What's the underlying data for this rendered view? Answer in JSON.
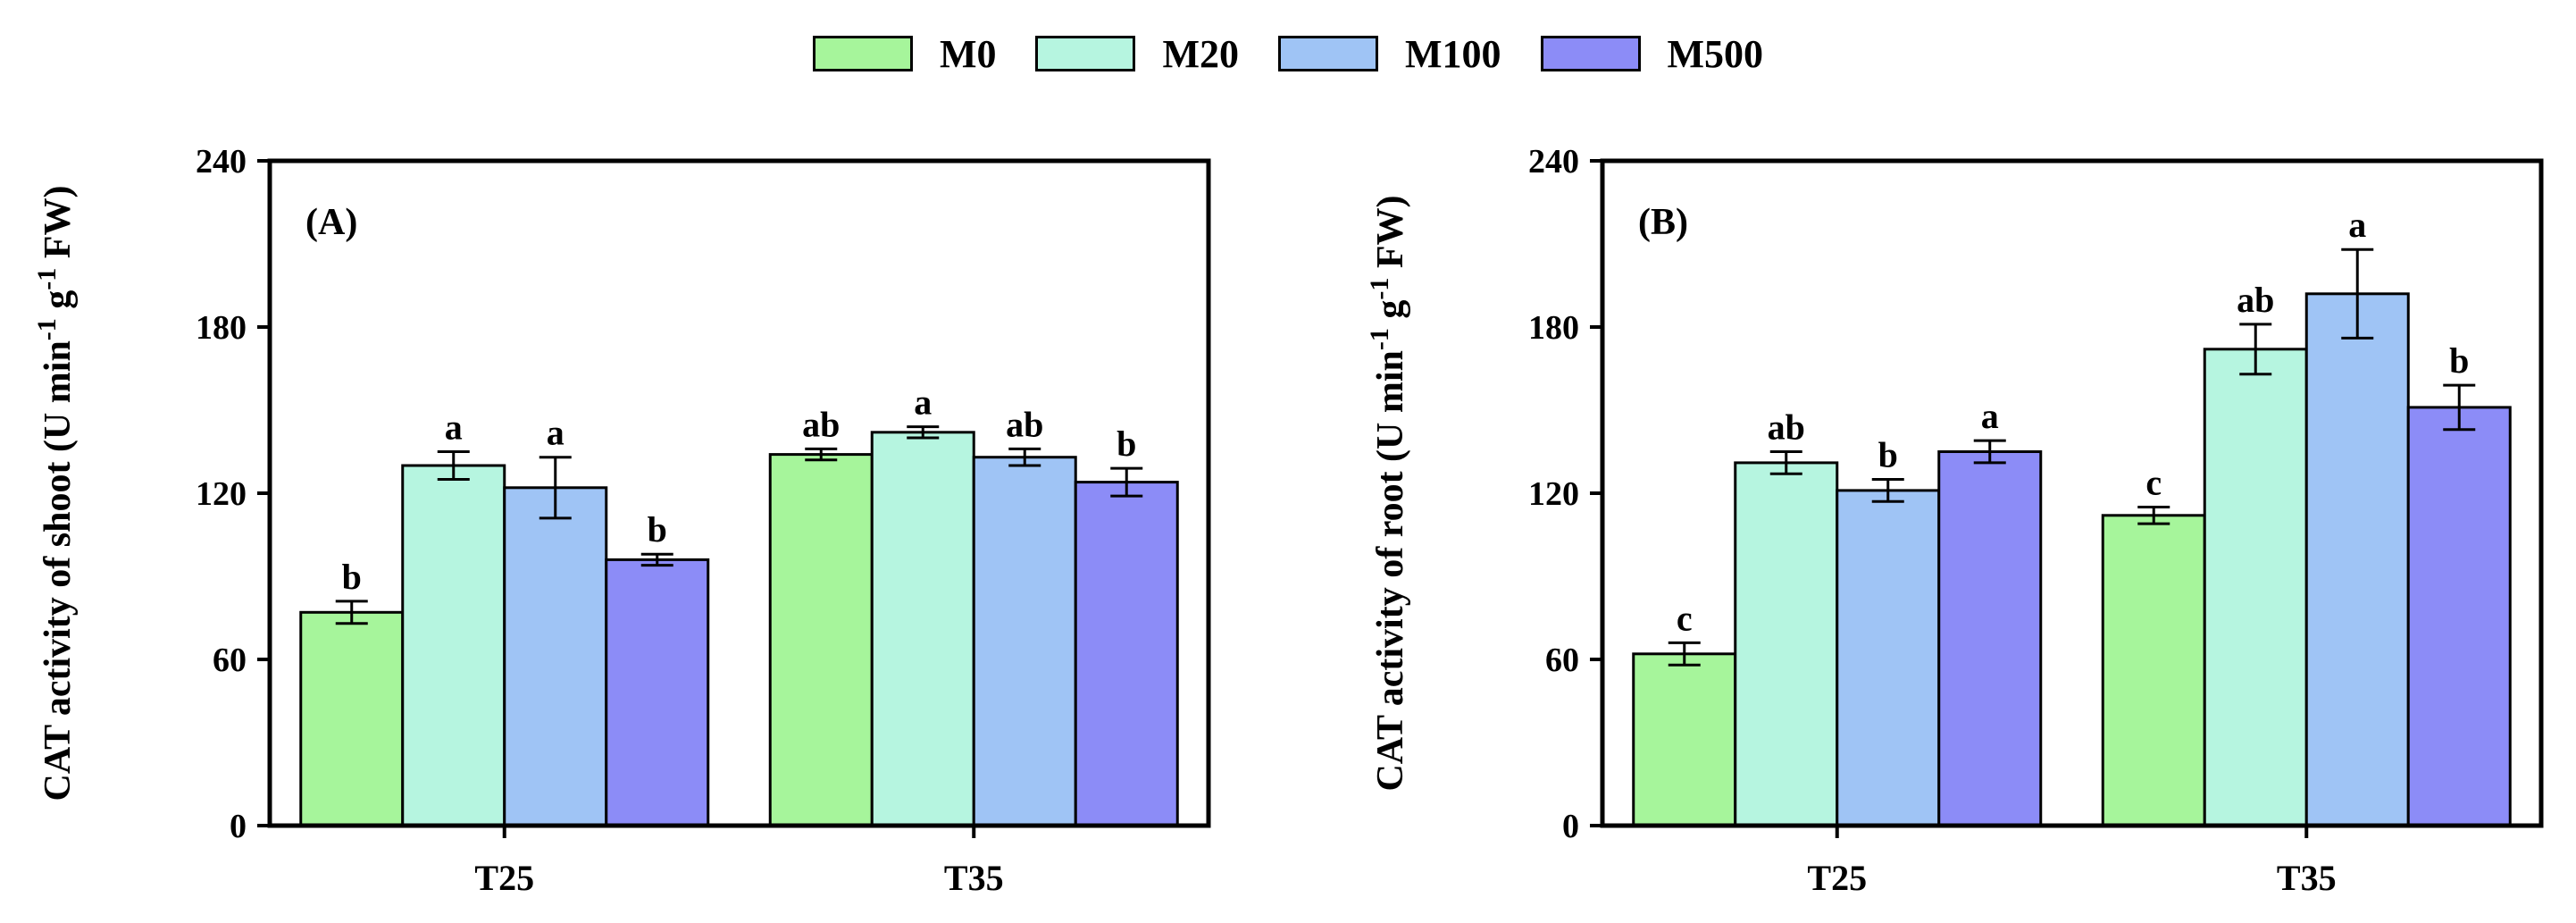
{
  "legend": [
    {
      "name": "M0",
      "color": "#a6f59b"
    },
    {
      "name": "M20",
      "color": "#b6f5e0"
    },
    {
      "name": "M100",
      "color": "#9fc4f5"
    },
    {
      "name": "M500",
      "color": "#8c8cf7"
    }
  ],
  "chart_data": [
    {
      "type": "bar",
      "panel_label": "(A)",
      "ylabel": "CAT activity of shoot (U min-1 g-1 FW)",
      "ylabel_parts": [
        "CAT activity of shoot (U min",
        "-1",
        " g",
        "-1",
        " FW)"
      ],
      "xlabel": "",
      "categories": [
        "T25",
        "T35"
      ],
      "ylim": [
        0,
        240
      ],
      "yticks": [
        0,
        60,
        120,
        180,
        240
      ],
      "grid": false,
      "legend_position": "top-center",
      "series": [
        {
          "name": "M0",
          "values": [
            77,
            134
          ],
          "errors": [
            4,
            2
          ],
          "letters": [
            "b",
            "ab"
          ]
        },
        {
          "name": "M20",
          "values": [
            130,
            142
          ],
          "errors": [
            5,
            2
          ],
          "letters": [
            "a",
            "a"
          ]
        },
        {
          "name": "M100",
          "values": [
            122,
            133
          ],
          "errors": [
            11,
            3
          ],
          "letters": [
            "a",
            "ab"
          ]
        },
        {
          "name": "M500",
          "values": [
            96,
            124
          ],
          "errors": [
            2,
            5
          ],
          "letters": [
            "b",
            "b"
          ]
        }
      ]
    },
    {
      "type": "bar",
      "panel_label": "(B)",
      "ylabel": "CAT activity of root (U min-1 g-1 FW)",
      "ylabel_parts": [
        "CAT activity of root (U min",
        "-1",
        " g",
        "-1",
        " FW)"
      ],
      "xlabel": "",
      "categories": [
        "T25",
        "T35"
      ],
      "ylim": [
        0,
        240
      ],
      "yticks": [
        0,
        60,
        120,
        180,
        240
      ],
      "grid": false,
      "legend_position": "top-center",
      "series": [
        {
          "name": "M0",
          "values": [
            62,
            112
          ],
          "errors": [
            4,
            3
          ],
          "letters": [
            "c",
            "c"
          ]
        },
        {
          "name": "M20",
          "values": [
            131,
            172
          ],
          "errors": [
            4,
            9
          ],
          "letters": [
            "ab",
            "ab"
          ]
        },
        {
          "name": "M100",
          "values": [
            121,
            192
          ],
          "errors": [
            4,
            16
          ],
          "letters": [
            "b",
            "a"
          ]
        },
        {
          "name": "M500",
          "values": [
            135,
            151
          ],
          "errors": [
            4,
            8
          ],
          "letters": [
            "a",
            "b"
          ]
        }
      ]
    }
  ]
}
